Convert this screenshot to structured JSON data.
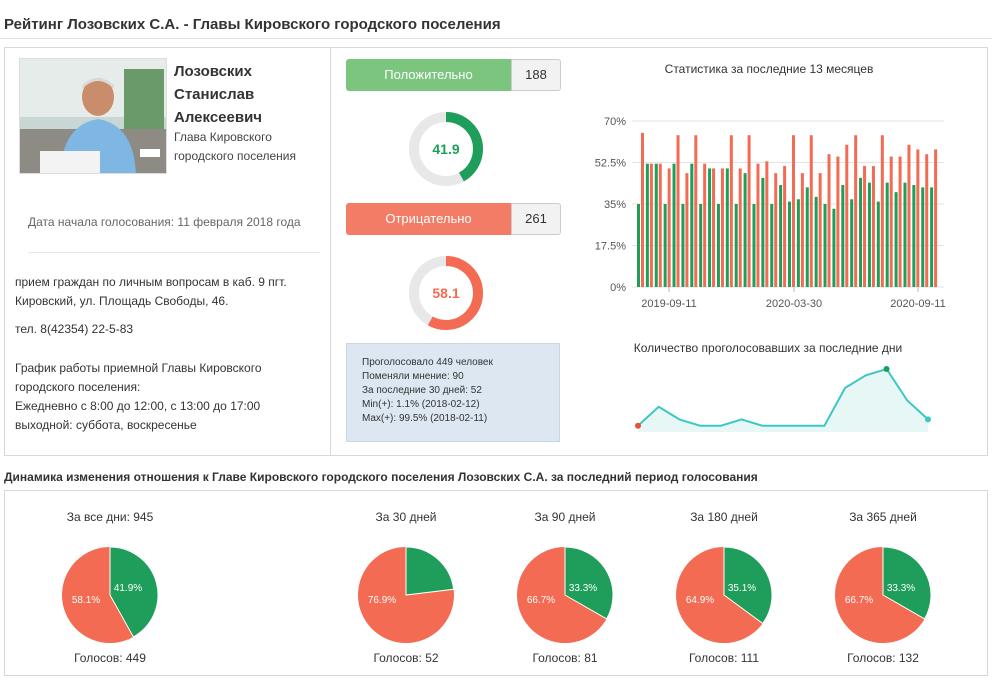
{
  "header": {
    "title": "Рейтинг Лозовских С.А. - Главы Кировского городского поселения"
  },
  "person": {
    "name_line1": "Лозовских",
    "name_line2": "Станислав",
    "name_line3": "Алексеевич",
    "post_line1": "Глава Кировского",
    "post_line2": "городского поселения",
    "start_date": "Дата начала голосования: 11 февраля 2018 года",
    "reception_line1": "прием граждан по личным вопросам в каб. 9 пгт.",
    "reception_line2": "Кировский, ул. Площадь Свободы, 46.",
    "phone": "тел. 8(42354) 22-5-83",
    "schedule_line1": "График работы приемной Главы Кировского",
    "schedule_line2": "городского поселения:",
    "schedule_line3": "Ежедневно с 8:00 до 12:00, с 13:00 до 17:00",
    "schedule_line4": "выходной: суббота, воскресенье"
  },
  "votes": {
    "positive_label": "Положительно",
    "positive_count": "188",
    "positive_percent": "41.9",
    "negative_label": "Отрицательно",
    "negative_count": "261",
    "negative_percent": "58.1",
    "stats": {
      "voted": "Проголосовало 449 человек",
      "changed": "Поменяли мнение: 90",
      "last30": "За последние 30 дней: 52",
      "min": "Min(+): 1.1% (2018-02-12)",
      "max": "Max(+): 99.5% (2018-02-11)"
    }
  },
  "colors": {
    "positive": "#1e9e5a",
    "negative": "#f26b52",
    "positive_btn": "#7bc57f",
    "negative_btn": "#f27c66",
    "line": "#3cc8c4"
  },
  "chart_data": [
    {
      "type": "bar",
      "title": "Статистика за последние 13 месяцев",
      "ylim": [
        0,
        70
      ],
      "yticks": [
        "0%",
        "17.5%",
        "35%",
        "52.5%",
        "70%"
      ],
      "xticks": [
        "2019-09-11",
        "2020-03-30",
        "2020-09-11"
      ],
      "grid": true,
      "series": [
        {
          "color": "#1e9e5a",
          "values": [
            35,
            52,
            52,
            35,
            52,
            35,
            52,
            35,
            50,
            35,
            50,
            35,
            48,
            35,
            46,
            35,
            43,
            36,
            37,
            42,
            38,
            35,
            33,
            43,
            37,
            46,
            44,
            36,
            44,
            40,
            44,
            43,
            42,
            42
          ]
        },
        {
          "color": "#f26b52",
          "values": [
            65,
            52,
            52,
            50,
            64,
            48,
            64,
            52,
            50,
            50,
            64,
            50,
            64,
            52,
            53,
            48,
            51,
            64,
            48,
            64,
            48,
            56,
            55,
            60,
            64,
            51,
            51,
            64,
            55,
            55,
            60,
            58,
            56,
            58
          ]
        }
      ]
    },
    {
      "type": "line",
      "title": "Количество проголосовавших за последние дни",
      "values": [
        1,
        4,
        2,
        1,
        1,
        2,
        1,
        1,
        1,
        1,
        7,
        9,
        10,
        5,
        2
      ]
    },
    {
      "type": "pie",
      "pies": [
        {
          "caption": "За все дни: 945",
          "footer": "Голосов: 449",
          "positive": 41.9,
          "negative": 58.1,
          "pos_label": "41.9%",
          "neg_label": "58.1%"
        },
        {
          "caption": "За 30 дней",
          "footer": "Голосов: 52",
          "positive": 23.1,
          "negative": 76.9,
          "pos_label": "",
          "neg_label": "76.9%"
        },
        {
          "caption": "За 90 дней",
          "footer": "Голосов: 81",
          "positive": 33.3,
          "negative": 66.7,
          "pos_label": "33.3%",
          "neg_label": "66.7%"
        },
        {
          "caption": "За 180 дней",
          "footer": "Голосов: 111",
          "positive": 35.1,
          "negative": 64.9,
          "pos_label": "35.1%",
          "neg_label": "64.9%"
        },
        {
          "caption": "За 365 дней",
          "footer": "Голосов: 132",
          "positive": 33.3,
          "negative": 66.7,
          "pos_label": "33.3%",
          "neg_label": "66.7%"
        }
      ]
    }
  ],
  "dynamics_title": "Динамика изменения отношения к Главе Кировского городского поселения Лозовских С.А. за последний период голосования"
}
